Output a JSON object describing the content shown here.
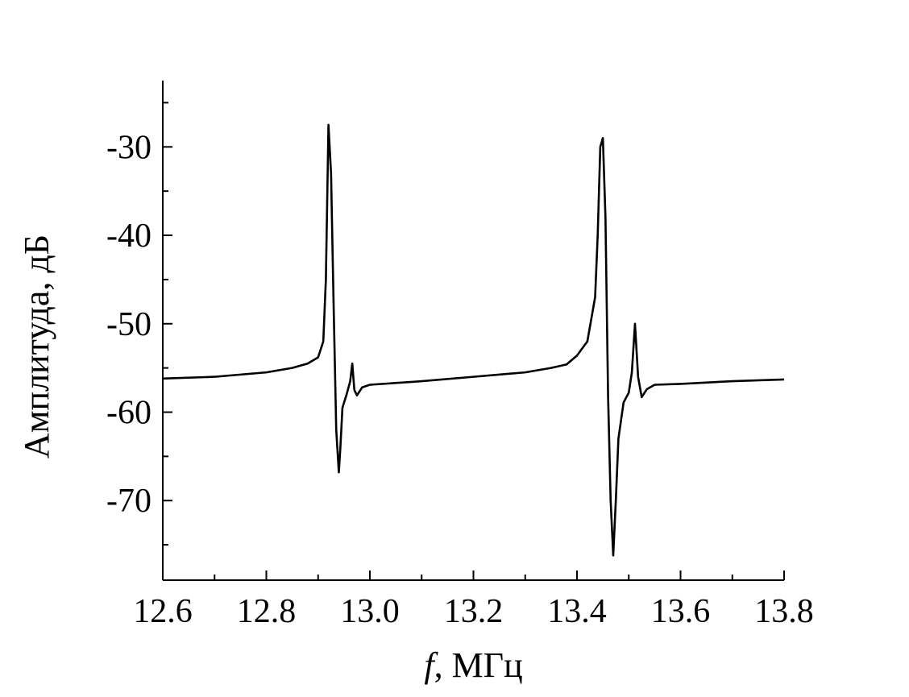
{
  "chart_data": {
    "type": "line",
    "title": "",
    "xlabel_italic": "f",
    "xlabel_rest": ", МГц",
    "ylabel": "Амплитуда, дБ",
    "xlim": [
      12.6,
      13.8
    ],
    "ylim": [
      -79,
      -22.5
    ],
    "x_ticks": [
      12.6,
      12.8,
      13.0,
      13.2,
      13.4,
      13.6,
      13.8
    ],
    "x_tick_labels": [
      "12.6",
      "12.8",
      "13.0",
      "13.2",
      "13.4",
      "13.6",
      "13.8"
    ],
    "x_minor_ticks": [
      12.7,
      12.9,
      13.1,
      13.3,
      13.5,
      13.7
    ],
    "y_ticks": [
      -30,
      -40,
      -50,
      -60,
      -70
    ],
    "y_tick_labels": [
      "-30",
      "-40",
      "-50",
      "-60",
      "-70"
    ],
    "y_minor_ticks": [
      -25,
      -35,
      -45,
      -55,
      -65,
      -75
    ],
    "grid": false,
    "legend": "none",
    "series": [
      {
        "color": "#000000",
        "x": [
          12.6,
          12.7,
          12.8,
          12.85,
          12.88,
          12.9,
          12.91,
          12.915,
          12.92,
          12.925,
          12.93,
          12.935,
          12.94,
          12.943,
          12.947,
          12.955,
          12.962,
          12.966,
          12.97,
          12.975,
          12.985,
          13.0,
          13.1,
          13.2,
          13.3,
          13.35,
          13.38,
          13.4,
          13.42,
          13.435,
          13.44,
          13.445,
          13.45,
          13.455,
          13.46,
          13.465,
          13.47,
          13.475,
          13.48,
          13.49,
          13.5,
          13.506,
          13.512,
          13.518,
          13.525,
          13.535,
          13.55,
          13.6,
          13.7,
          13.8
        ],
        "y": [
          -56.2,
          -56.0,
          -55.5,
          -55.0,
          -54.5,
          -53.8,
          -52.0,
          -45.0,
          -27.5,
          -33.0,
          -48.0,
          -62.0,
          -66.8,
          -64.0,
          -59.5,
          -58.0,
          -56.5,
          -54.5,
          -57.5,
          -58.1,
          -57.2,
          -56.9,
          -56.5,
          -56.0,
          -55.5,
          -55.0,
          -54.6,
          -53.6,
          -52.0,
          -47.0,
          -40.0,
          -30.0,
          -29.0,
          -38.0,
          -58.0,
          -70.0,
          -76.2,
          -70.0,
          -63.0,
          -58.9,
          -57.8,
          -55.5,
          -50.0,
          -56.0,
          -58.3,
          -57.4,
          -56.9,
          -56.8,
          -56.5,
          -56.3
        ]
      }
    ]
  }
}
